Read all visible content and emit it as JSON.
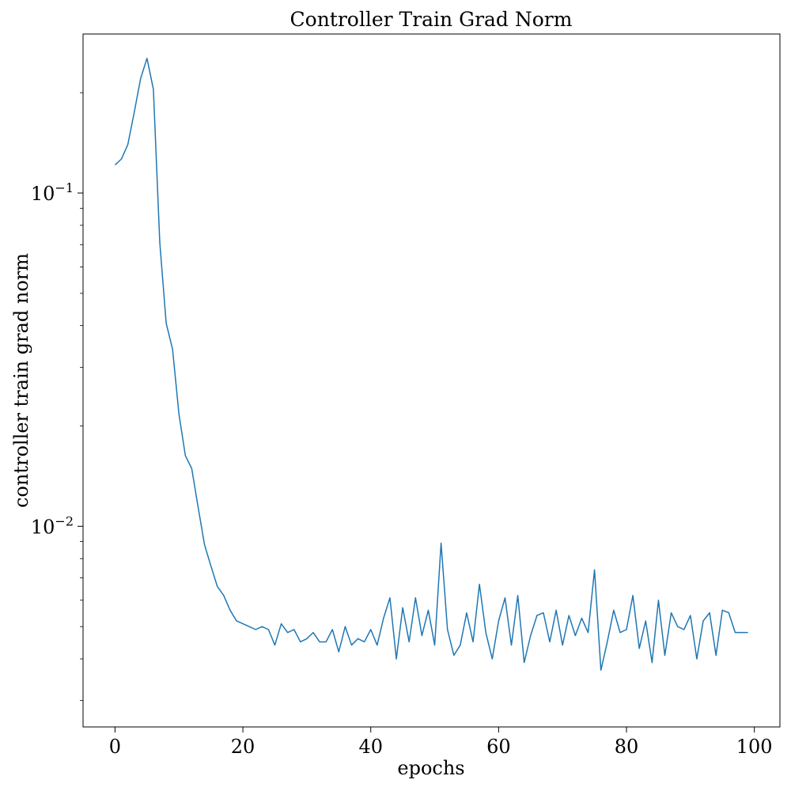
{
  "chart_data": {
    "type": "line",
    "title": "Controller Train Grad Norm",
    "xlabel": "epochs",
    "ylabel": "controller train grad norm",
    "xlim": [
      -5,
      104
    ],
    "ylim": [
      0.0025,
      0.3
    ],
    "yscale": "log",
    "grid": false,
    "xticks": [
      0,
      20,
      40,
      60,
      80,
      100
    ],
    "yticks": [
      {
        "value": 0.1,
        "base": "10",
        "exp": "−1"
      },
      {
        "value": 0.01,
        "base": "10",
        "exp": "−2"
      }
    ],
    "series": [
      {
        "color": "#1f77b4",
        "x": [
          0,
          1,
          2,
          3,
          4,
          5,
          6,
          7,
          8,
          9,
          10,
          11,
          12,
          13,
          14,
          15,
          16,
          17,
          18,
          19,
          20,
          21,
          22,
          23,
          24,
          25,
          26,
          27,
          28,
          29,
          30,
          31,
          32,
          33,
          34,
          35,
          36,
          37,
          38,
          39,
          40,
          41,
          42,
          43,
          44,
          45,
          46,
          47,
          48,
          49,
          50,
          51,
          52,
          53,
          54,
          55,
          56,
          57,
          58,
          59,
          60,
          61,
          62,
          63,
          64,
          65,
          66,
          67,
          68,
          69,
          70,
          71,
          72,
          73,
          74,
          75,
          76,
          77,
          78,
          79,
          80,
          81,
          82,
          83,
          84,
          85,
          86,
          87,
          88,
          89,
          90,
          91,
          92,
          93,
          94,
          95,
          96,
          97,
          98,
          99
        ],
        "values": [
          0.1214,
          0.1265,
          0.1397,
          0.1744,
          0.2205,
          0.2537,
          0.2047,
          0.0711,
          0.0407,
          0.034,
          0.0217,
          0.0163,
          0.0149,
          0.0114,
          0.0088,
          0.0076,
          0.0066,
          0.0062,
          0.0056,
          0.0052,
          0.0051,
          0.005,
          0.0049,
          0.005,
          0.0049,
          0.0044,
          0.0051,
          0.0048,
          0.0049,
          0.0045,
          0.0046,
          0.0048,
          0.0045,
          0.0045,
          0.0049,
          0.0042,
          0.005,
          0.0044,
          0.0046,
          0.0045,
          0.0049,
          0.0044,
          0.0053,
          0.0061,
          0.004,
          0.0057,
          0.0045,
          0.0061,
          0.0047,
          0.0056,
          0.0044,
          0.0089,
          0.0049,
          0.0041,
          0.0044,
          0.0055,
          0.0045,
          0.0067,
          0.0048,
          0.004,
          0.0052,
          0.0061,
          0.0044,
          0.0062,
          0.0039,
          0.0047,
          0.0054,
          0.0055,
          0.0045,
          0.0056,
          0.0044,
          0.0054,
          0.0047,
          0.0053,
          0.0048,
          0.0074,
          0.0037,
          0.0045,
          0.0056,
          0.0048,
          0.0049,
          0.0062,
          0.0043,
          0.0052,
          0.0039,
          0.006,
          0.0041,
          0.0055,
          0.005,
          0.0049,
          0.0054,
          0.004,
          0.0052,
          0.0055,
          0.0041,
          0.0056,
          0.0055,
          0.0048,
          0.0048,
          0.0048
        ]
      }
    ]
  }
}
